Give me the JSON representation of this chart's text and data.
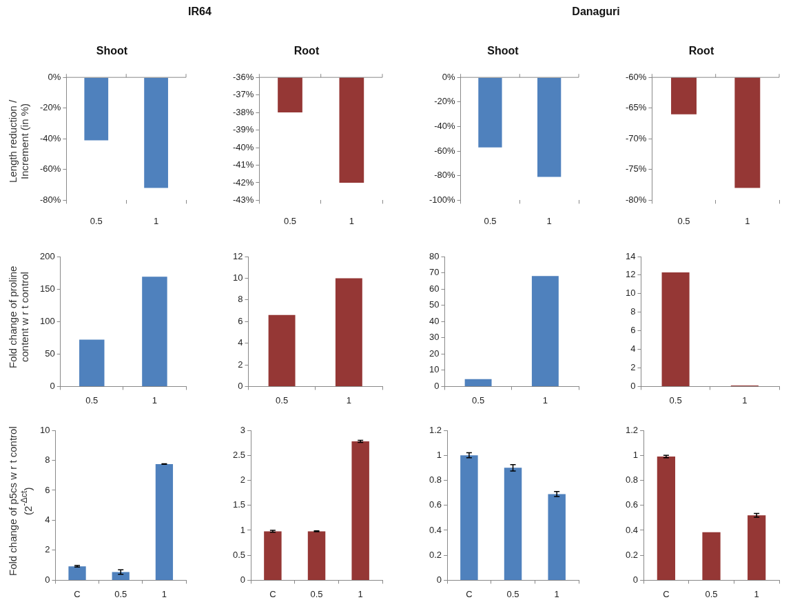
{
  "chart_data": [
    {
      "type": "bar",
      "title": "Shoot",
      "annotations": [
        "IR64"
      ],
      "ylabel": "Length reduction / Increment (in %)",
      "categories": [
        "0.5",
        "1"
      ],
      "values": [
        -41,
        -72
      ],
      "color": "#4f81bd",
      "ylim": [
        -80,
        0
      ],
      "yticks": [
        {
          "value": -80,
          "label": "-80%"
        },
        {
          "value": -60,
          "label": "-60%"
        },
        {
          "value": -40,
          "label": "-40%"
        },
        {
          "value": -20,
          "label": "-20%"
        },
        {
          "value": 0,
          "label": "0%"
        }
      ]
    },
    {
      "type": "bar",
      "title": "Root",
      "categories": [
        "0.5",
        "1"
      ],
      "values": [
        -38,
        -42
      ],
      "color": "#953735",
      "ylim": [
        -43,
        -36
      ],
      "yticks": [
        {
          "value": -43,
          "label": "-43%"
        },
        {
          "value": -42,
          "label": "-42%"
        },
        {
          "value": -41,
          "label": "-41%"
        },
        {
          "value": -40,
          "label": "-40%"
        },
        {
          "value": -39,
          "label": "-39%"
        },
        {
          "value": -38,
          "label": "-38%"
        },
        {
          "value": -37,
          "label": "-37%"
        },
        {
          "value": -36,
          "label": "-36%"
        }
      ]
    },
    {
      "type": "bar",
      "title": "Shoot",
      "annotations": [
        "Danaguri"
      ],
      "categories": [
        "0.5",
        "1"
      ],
      "values": [
        -57,
        -81
      ],
      "color": "#4f81bd",
      "ylim": [
        -100,
        0
      ],
      "yticks": [
        {
          "value": -100,
          "label": "-100%"
        },
        {
          "value": -80,
          "label": "-80%"
        },
        {
          "value": -60,
          "label": "-60%"
        },
        {
          "value": -40,
          "label": "-40%"
        },
        {
          "value": -20,
          "label": "-20%"
        },
        {
          "value": 0,
          "label": "0%"
        }
      ]
    },
    {
      "type": "bar",
      "title": "Root",
      "categories": [
        "0.5",
        "1"
      ],
      "values": [
        -66,
        -78
      ],
      "color": "#953735",
      "ylim": [
        -80,
        -60
      ],
      "yticks": [
        {
          "value": -80,
          "label": "-80%"
        },
        {
          "value": -75,
          "label": "-75%"
        },
        {
          "value": -70,
          "label": "-70%"
        },
        {
          "value": -65,
          "label": "-65%"
        },
        {
          "value": -60,
          "label": "-60%"
        }
      ]
    },
    {
      "type": "bar",
      "ylabel": "Fold change of proline content  w r t control",
      "categories": [
        "0.5",
        "1"
      ],
      "values": [
        72,
        169
      ],
      "color": "#4f81bd",
      "ylim": [
        0,
        200
      ],
      "yticks": [
        0,
        50,
        100,
        150,
        200
      ]
    },
    {
      "type": "bar",
      "categories": [
        "0.5",
        "1"
      ],
      "values": [
        6.6,
        10
      ],
      "color": "#953735",
      "ylim": [
        0,
        12
      ],
      "yticks": [
        0,
        2,
        4,
        6,
        8,
        10,
        12
      ]
    },
    {
      "type": "bar",
      "categories": [
        "0.5",
        "1"
      ],
      "values": [
        4.5,
        68
      ],
      "color": "#4f81bd",
      "ylim": [
        0,
        80
      ],
      "yticks": [
        0,
        10,
        20,
        30,
        40,
        50,
        60,
        70,
        80
      ]
    },
    {
      "type": "bar",
      "categories": [
        "0.5",
        "1"
      ],
      "values": [
        12.3,
        0.1
      ],
      "color": "#953735",
      "ylim": [
        0,
        14
      ],
      "yticks": [
        0,
        2,
        4,
        6,
        8,
        10,
        12,
        14
      ]
    },
    {
      "type": "bar",
      "ylabel": "Fold change of p5cs w r t control (2$^{-Δct}$)",
      "categories": [
        "C",
        "0.5",
        "1"
      ],
      "values": [
        0.93,
        0.55,
        7.75
      ],
      "errors": [
        0.05,
        0.15,
        0.02
      ],
      "color": "#4f81bd",
      "ylim": [
        0,
        10
      ],
      "yticks": [
        0,
        2,
        4,
        6,
        8,
        10
      ]
    },
    {
      "type": "bar",
      "categories": [
        "C",
        "0.5",
        "1"
      ],
      "values": [
        0.98,
        0.98,
        2.78
      ],
      "errors": [
        0.02,
        0.01,
        0.02
      ],
      "color": "#953735",
      "ylim": [
        0,
        3
      ],
      "yticks": [
        0,
        0.5,
        1,
        1.5,
        2,
        2.5,
        3
      ]
    },
    {
      "type": "bar",
      "categories": [
        "C",
        "0.5",
        "1"
      ],
      "values": [
        1.0,
        0.9,
        0.69
      ],
      "errors": [
        0.02,
        0.025,
        0.02
      ],
      "color": "#4f81bd",
      "ylim": [
        0,
        1.2
      ],
      "yticks": [
        0,
        0.2,
        0.4,
        0.6,
        0.8,
        1,
        1.2
      ]
    },
    {
      "type": "bar",
      "categories": [
        "C",
        "0.5",
        "1"
      ],
      "values": [
        0.99,
        0.385,
        0.52
      ],
      "errors": [
        0.01,
        null,
        0.015
      ],
      "color": "#953735",
      "ylim": [
        0,
        1.2
      ],
      "yticks": [
        0,
        0.2,
        0.4,
        0.6,
        0.8,
        1,
        1.2
      ]
    }
  ]
}
